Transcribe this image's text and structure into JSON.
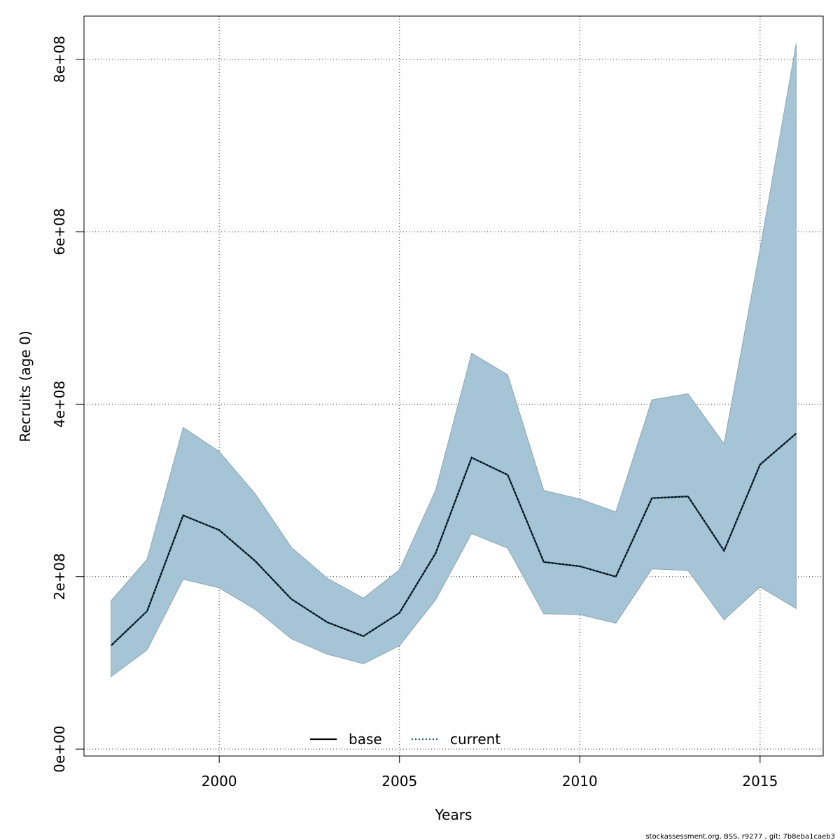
{
  "chart_data": {
    "type": "area",
    "xlabel": "Years",
    "ylabel": "Recruits (age 0)",
    "xlim": [
      1996.25,
      2016.75
    ],
    "ylim": [
      -8000000,
      850000000
    ],
    "x_ticks": [
      2000,
      2005,
      2010,
      2015
    ],
    "y_ticks": [
      0,
      200000000,
      400000000,
      600000000,
      800000000
    ],
    "x_tick_labels": [
      "2000",
      "2005",
      "2010",
      "2015"
    ],
    "y_tick_labels": [
      "0e+00",
      "2e+08",
      "4e+08",
      "6e+08",
      "8e+08"
    ],
    "grid": true,
    "legend_position": "bottom",
    "x": [
      1997,
      1998,
      1999,
      2000,
      2001,
      2002,
      2003,
      2004,
      2005,
      2006,
      2007,
      2008,
      2009,
      2010,
      2011,
      2012,
      2013,
      2014,
      2015,
      2016
    ],
    "band": {
      "color": "#a5c5d6",
      "upper": [
        172000000,
        220000000,
        373000000,
        345000000,
        296000000,
        234000000,
        198000000,
        175000000,
        208000000,
        300000000,
        459000000,
        434000000,
        300000000,
        290000000,
        275000000,
        405000000,
        412000000,
        354000000,
        580000000,
        818000000
      ],
      "lower": [
        84000000,
        115000000,
        197000000,
        187000000,
        162000000,
        128000000,
        110000000,
        99000000,
        120000000,
        173000000,
        250000000,
        233000000,
        157000000,
        156000000,
        146000000,
        209000000,
        207000000,
        150000000,
        188000000,
        163000000
      ]
    },
    "series": [
      {
        "name": "current",
        "color": "#1f5a7d",
        "style": "dotted",
        "values": [
          120000000,
          160000000,
          271000000,
          254000000,
          218000000,
          174000000,
          147000000,
          131000000,
          158000000,
          227000000,
          338000000,
          318000000,
          217000000,
          212000000,
          200000000,
          291000000,
          293000000,
          230000000,
          330000000,
          366000000
        ]
      }
    ],
    "legend": [
      {
        "label": "base",
        "style": "solid",
        "color": "#000000"
      },
      {
        "label": "current",
        "style": "dotted",
        "color": "#1f5a7d"
      }
    ]
  },
  "footer": "stockassessment.org, BSS, r9277 , git: 7b8eba1caeb3"
}
